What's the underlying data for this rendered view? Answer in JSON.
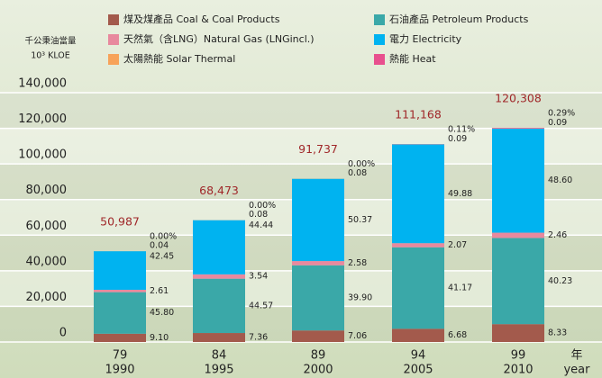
{
  "chart_data": {
    "type": "stacked_bar",
    "y_label_lines": [
      "千公秉油當量",
      "10³ KLOE"
    ],
    "categories": [
      "79",
      "84",
      "89",
      "94",
      "99"
    ],
    "sub_categories": [
      "1990",
      "1995",
      "2000",
      "2005",
      "2010"
    ],
    "x_unit_lines": [
      "年",
      "year"
    ],
    "ylim": [
      0,
      140000
    ],
    "yticks": [
      0,
      {
        "value": 20000,
        "label": "20,000"
      },
      {
        "value": 40000,
        "label": "40,000"
      },
      {
        "value": 60000,
        "label": "60,000"
      },
      {
        "value": 80000,
        "label": "80,000"
      },
      {
        "value": 100000,
        "label": "100,000"
      },
      {
        "value": 120000,
        "label": "120,000"
      },
      {
        "value": 140000,
        "label": "140,000"
      }
    ],
    "grid": true,
    "totals": {
      "values": [
        50987,
        68473,
        91737,
        111168,
        120308
      ],
      "value_labels": [
        "50,987",
        "68,473",
        "91,737",
        "111,168",
        "120,308"
      ],
      "color": "#a0282a"
    },
    "series": [
      {
        "name": "煤及煤產品 Coal & Coal Products",
        "color": "#a35a4c",
        "values": [
          9.1,
          7.36,
          7.06,
          6.68,
          8.33
        ],
        "value_labels": [
          "9.10",
          "7.36",
          "7.06",
          "6.68",
          "8.33"
        ]
      },
      {
        "name": "石油產品 Petroleum Products",
        "color": "#3aa8a8",
        "values": [
          45.8,
          44.57,
          39.9,
          41.17,
          40.23
        ],
        "value_labels": [
          "45.80",
          "44.57",
          "39.90",
          "41.17",
          "40.23"
        ]
      },
      {
        "name": "天然氣（含LNG）Natural Gas (LNGincl.)",
        "color": "#e8899e",
        "values": [
          2.61,
          3.54,
          2.58,
          2.07,
          2.46
        ],
        "value_labels": [
          "2.61",
          "3.54",
          "2.58",
          "2.07",
          "2.46"
        ]
      },
      {
        "name": "電力 Electricity",
        "color": "#00b3f0",
        "values": [
          42.45,
          44.44,
          50.37,
          49.88,
          48.6
        ],
        "value_labels": [
          "42.45",
          "44.44",
          "50.37",
          "49.88",
          "48.60"
        ]
      },
      {
        "name": "太陽熱能 Solar Thermal",
        "color": "#f7a35a",
        "values": [
          0.04,
          0.08,
          0.08,
          0.09,
          0.09
        ],
        "value_labels": [
          "0.04",
          "0.08",
          "0.08",
          "0.09",
          "0.09"
        ]
      },
      {
        "name": "熱能 Heat",
        "color": "#e8508e",
        "values": [
          0,
          0,
          0,
          0.11,
          0.29
        ],
        "value_labels": [
          "0.00%",
          "0.00%",
          "0.00%",
          "0.11%",
          "0.29%"
        ]
      }
    ]
  }
}
